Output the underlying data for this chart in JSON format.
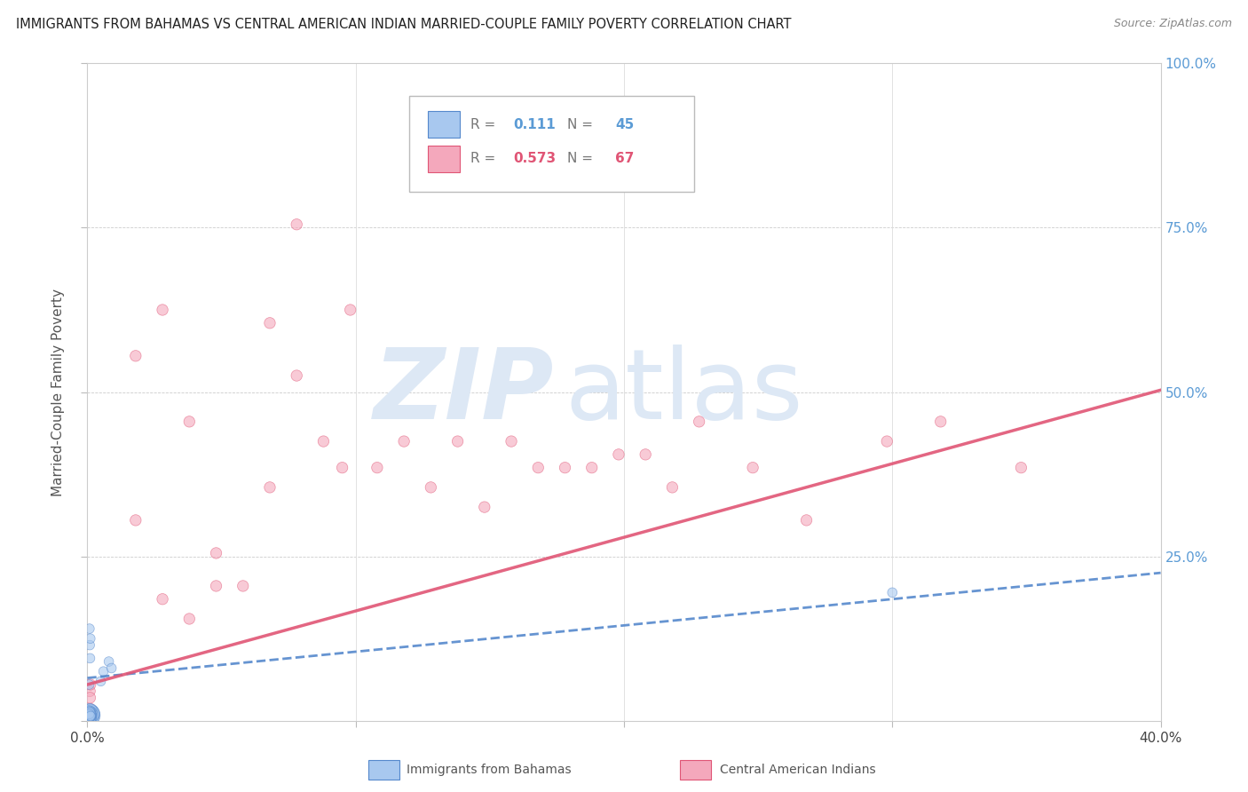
{
  "title": "IMMIGRANTS FROM BAHAMAS VS CENTRAL AMERICAN INDIAN MARRIED-COUPLE FAMILY POVERTY CORRELATION CHART",
  "source": "Source: ZipAtlas.com",
  "ylabel": "Married-Couple Family Poverty",
  "xlim": [
    0.0,
    0.4
  ],
  "ylim": [
    0.0,
    1.0
  ],
  "yticks": [
    0.0,
    0.25,
    0.5,
    0.75,
    1.0
  ],
  "right_ytick_labels": [
    "",
    "25.0%",
    "50.0%",
    "75.0%",
    "100.0%"
  ],
  "legend_label1": "Immigrants from Bahamas",
  "legend_label2": "Central American Indians",
  "R1": 0.111,
  "N1": 45,
  "R2": 0.573,
  "N2": 67,
  "color1": "#a8c8ef",
  "color2": "#f4a8bc",
  "trend_color1": "#5588cc",
  "trend_color2": "#e05575",
  "watermark_color": "#dde8f5",
  "blue_x": [
    0.0008,
    0.001,
    0.0012,
    0.0009,
    0.0011,
    0.0007,
    0.0013,
    0.0006,
    0.001,
    0.0008,
    0.0009,
    0.0011,
    0.0007,
    0.0012,
    0.0008,
    0.001,
    0.0009,
    0.0007,
    0.0011,
    0.0008,
    0.001,
    0.0009,
    0.0012,
    0.0007,
    0.0011,
    0.0008,
    0.0009,
    0.001,
    0.0007,
    0.0011,
    0.0008,
    0.0009,
    0.001,
    0.0007,
    0.0012,
    0.0008,
    0.0009,
    0.001,
    0.0011,
    0.0007,
    0.005,
    0.008,
    0.006,
    0.3,
    0.009
  ],
  "blue_y": [
    0.008,
    0.01,
    0.007,
    0.012,
    0.009,
    0.006,
    0.011,
    0.008,
    0.015,
    0.009,
    0.007,
    0.012,
    0.01,
    0.008,
    0.006,
    0.011,
    0.009,
    0.013,
    0.008,
    0.01,
    0.007,
    0.012,
    0.009,
    0.006,
    0.011,
    0.008,
    0.01,
    0.007,
    0.013,
    0.009,
    0.006,
    0.012,
    0.008,
    0.01,
    0.007,
    0.14,
    0.115,
    0.095,
    0.125,
    0.055,
    0.06,
    0.09,
    0.075,
    0.195,
    0.08
  ],
  "blue_size": [
    300,
    250,
    200,
    220,
    180,
    160,
    190,
    150,
    130,
    140,
    120,
    110,
    100,
    90,
    120,
    130,
    100,
    110,
    90,
    100,
    80,
    90,
    80,
    70,
    80,
    70,
    80,
    70,
    80,
    70,
    60,
    70,
    60,
    60,
    60,
    60,
    60,
    60,
    60,
    60,
    60,
    60,
    60,
    60,
    60
  ],
  "pink_x": [
    0.0008,
    0.001,
    0.0012,
    0.0009,
    0.0011,
    0.0007,
    0.0013,
    0.0006,
    0.001,
    0.0008,
    0.0009,
    0.0011,
    0.0007,
    0.0012,
    0.0008,
    0.001,
    0.0009,
    0.0007,
    0.0011,
    0.0008,
    0.001,
    0.0009,
    0.0012,
    0.0007,
    0.0011,
    0.0008,
    0.0009,
    0.001,
    0.0007,
    0.0011,
    0.028,
    0.048,
    0.068,
    0.095,
    0.118,
    0.148,
    0.178,
    0.198,
    0.218,
    0.248,
    0.268,
    0.298,
    0.318,
    0.348,
    0.078,
    0.058,
    0.038,
    0.048,
    0.088,
    0.108,
    0.128,
    0.158,
    0.188,
    0.208,
    0.138,
    0.168,
    0.228,
    0.068,
    0.078,
    0.098,
    0.018,
    0.028,
    0.038,
    0.018,
    0.0009,
    0.001,
    0.0011
  ],
  "pink_y": [
    0.01,
    0.008,
    0.015,
    0.012,
    0.018,
    0.007,
    0.012,
    0.009,
    0.011,
    0.014,
    0.008,
    0.012,
    0.009,
    0.011,
    0.008,
    0.012,
    0.009,
    0.015,
    0.011,
    0.008,
    0.012,
    0.009,
    0.011,
    0.008,
    0.012,
    0.009,
    0.011,
    0.008,
    0.012,
    0.009,
    0.185,
    0.205,
    0.355,
    0.385,
    0.425,
    0.325,
    0.385,
    0.405,
    0.355,
    0.385,
    0.305,
    0.425,
    0.455,
    0.385,
    0.525,
    0.205,
    0.155,
    0.255,
    0.425,
    0.385,
    0.355,
    0.425,
    0.385,
    0.405,
    0.425,
    0.385,
    0.455,
    0.605,
    0.755,
    0.625,
    0.555,
    0.625,
    0.455,
    0.305,
    0.045,
    0.035,
    0.055
  ],
  "pink_size": [
    80,
    80,
    80,
    80,
    80,
    80,
    80,
    80,
    80,
    80,
    80,
    80,
    80,
    80,
    80,
    80,
    80,
    80,
    80,
    80,
    80,
    80,
    80,
    80,
    80,
    80,
    80,
    80,
    80,
    80,
    80,
    80,
    80,
    80,
    80,
    80,
    80,
    80,
    80,
    80,
    80,
    80,
    80,
    80,
    80,
    80,
    80,
    80,
    80,
    80,
    80,
    80,
    80,
    80,
    80,
    80,
    80,
    80,
    80,
    80,
    80,
    80,
    80,
    80,
    80,
    80,
    80
  ]
}
